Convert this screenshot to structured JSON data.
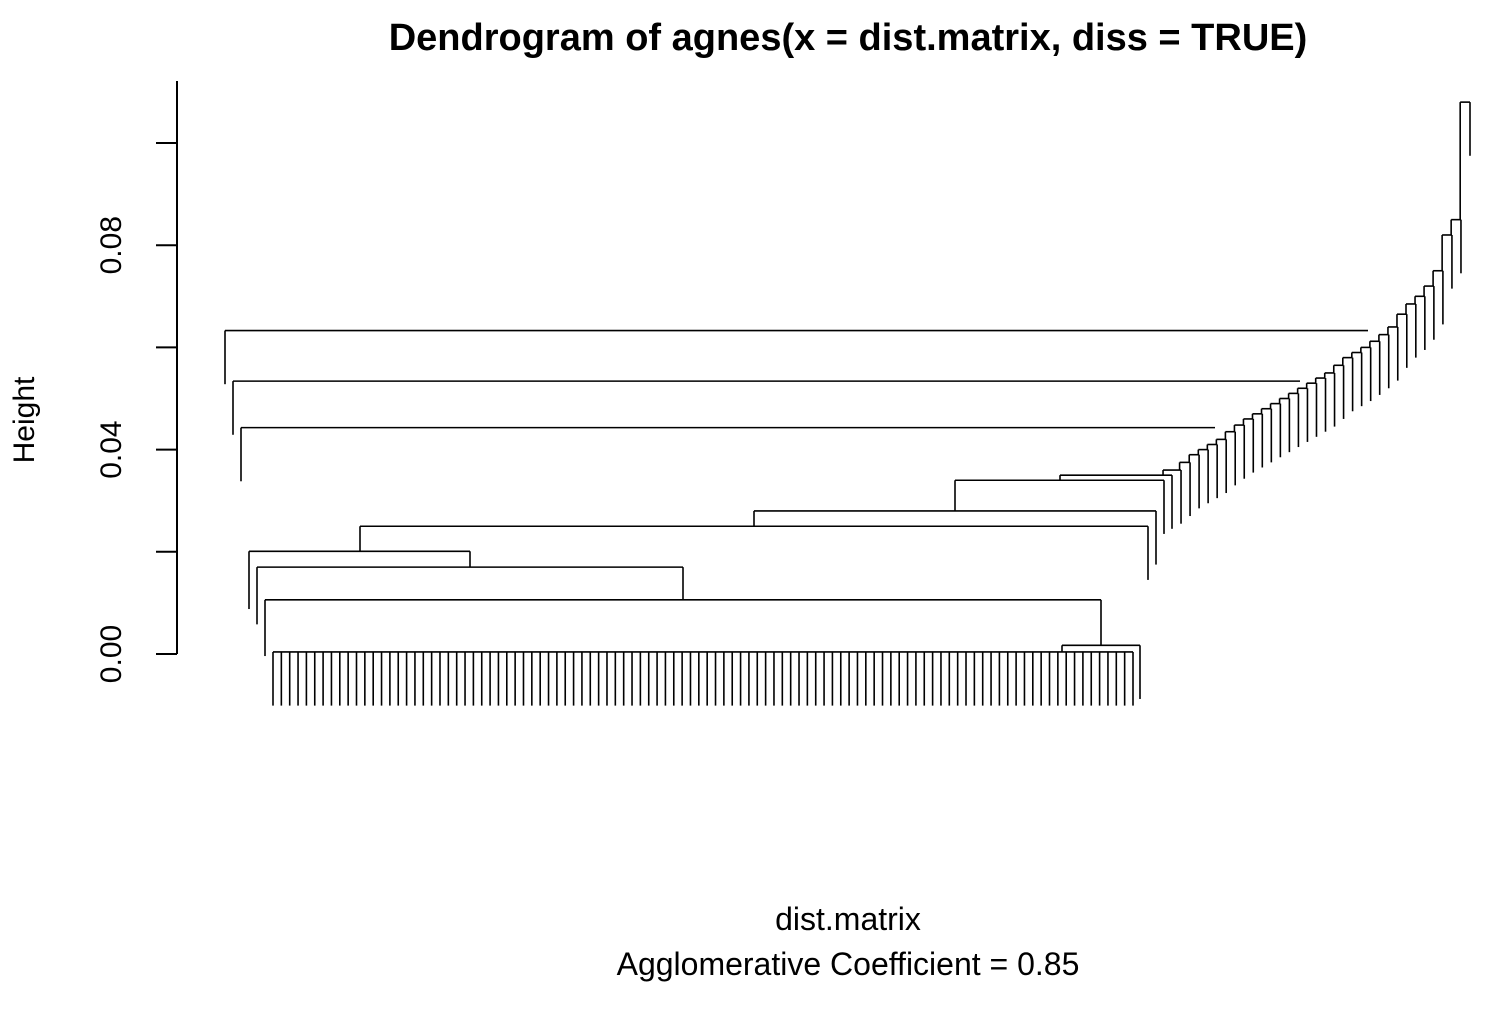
{
  "chart_data": {
    "type": "dendrogram",
    "title": "Dendrogram of  agnes(x = dist.matrix, diss = TRUE)",
    "xlabel": "dist.matrix",
    "subtitle": "Agglomerative Coefficient =  0.85",
    "ylabel": "Height",
    "ylim": [
      0,
      0.1
    ],
    "yticks": [
      {
        "value": 0.0,
        "label": "0.00",
        "labeled": true
      },
      {
        "value": 0.02,
        "label": "",
        "labeled": false
      },
      {
        "value": 0.04,
        "label": "0.04",
        "labeled": true
      },
      {
        "value": 0.06,
        "label": "",
        "labeled": false
      },
      {
        "value": 0.08,
        "label": "0.08",
        "labeled": true
      },
      {
        "value": 0.1,
        "label": "",
        "labeled": false
      }
    ],
    "agglomerative_coefficient": 0.85,
    "clusters": {
      "flat_block_leaves": 104,
      "flat_block_height": 0.0004,
      "left_branches": [
        {
          "height": 0.0201,
          "leaf_height": 0.0088
        },
        {
          "height": 0.017,
          "leaf_height": 0.0058
        },
        {
          "height": 0.0106,
          "leaf_height": -0.0004
        }
      ],
      "mid_clusters": [
        {
          "height": 0.025
        },
        {
          "height": 0.028
        },
        {
          "height": 0.034
        }
      ],
      "right_chain": [
        {
          "height": 0.035
        },
        {
          "height": 0.036
        },
        {
          "height": 0.0375
        },
        {
          "height": 0.039
        },
        {
          "height": 0.04
        },
        {
          "height": 0.041
        },
        {
          "height": 0.042
        },
        {
          "height": 0.0435
        },
        {
          "height": 0.0448
        },
        {
          "height": 0.046
        },
        {
          "height": 0.047
        },
        {
          "height": 0.048
        },
        {
          "height": 0.049
        },
        {
          "height": 0.05
        },
        {
          "height": 0.051
        },
        {
          "height": 0.052
        },
        {
          "height": 0.053
        },
        {
          "height": 0.054
        },
        {
          "height": 0.055
        },
        {
          "height": 0.0565
        },
        {
          "height": 0.058
        },
        {
          "height": 0.059
        },
        {
          "height": 0.06
        },
        {
          "height": 0.0612
        },
        {
          "height": 0.0625
        },
        {
          "height": 0.064
        },
        {
          "height": 0.0665
        },
        {
          "height": 0.0685
        },
        {
          "height": 0.07
        },
        {
          "height": 0.072
        },
        {
          "height": 0.075
        },
        {
          "height": 0.082
        },
        {
          "height": 0.085
        },
        {
          "height": 0.108
        }
      ],
      "top_left_heights": [
        0.0633,
        0.0534,
        0.0443
      ]
    }
  }
}
